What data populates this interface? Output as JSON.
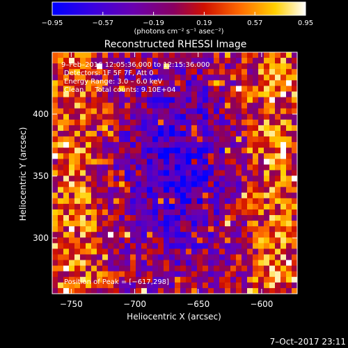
{
  "chart_data": {
    "type": "heatmap",
    "title": "Reconstructed RHESSI Image",
    "xlabel": "Heliocentric X (arcsec)",
    "ylabel": "Heliocentric Y (arcsec)",
    "xlim": [
      -765,
      -572
    ],
    "ylim": [
      255,
      450
    ],
    "x_ticks": [
      -750,
      -700,
      -650,
      -600
    ],
    "y_ticks": [
      300,
      350,
      400
    ],
    "x_tick_labels": [
      "−750",
      "−700",
      "−650",
      "−600"
    ],
    "y_tick_labels": [
      "300",
      "350",
      "400"
    ],
    "colorbar": {
      "range": [
        -0.95,
        0.95
      ],
      "ticks": [
        -0.95,
        -0.57,
        -0.19,
        0.19,
        0.57,
        0.95
      ],
      "tick_labels": [
        "−0.95",
        "−0.57",
        "−0.19",
        "0.19",
        "0.57",
        "0.95"
      ],
      "units_label": "(photons cm⁻² s⁻¹ asec⁻²)",
      "colors": [
        "#0000ff",
        "#4a00d0",
        "#7000a0",
        "#a00040",
        "#e01000",
        "#ff8800",
        "#ffe000",
        "#ffffff"
      ]
    },
    "annotations": [
      "9–Feb–2016 12:05:36.000 to 12:15:36.000",
      "Detectors: 1F 5F 7F, Att 0",
      "Energy Range: 3.0 – 6.0 keV",
      "Clean     Total counts: 9.10E+04"
    ],
    "peak_label": "Position of Peak = [−617,298]",
    "peak_position": [
      -617,
      298
    ],
    "grid": false
  },
  "footer_date": "7–Oct–2017 23:11"
}
